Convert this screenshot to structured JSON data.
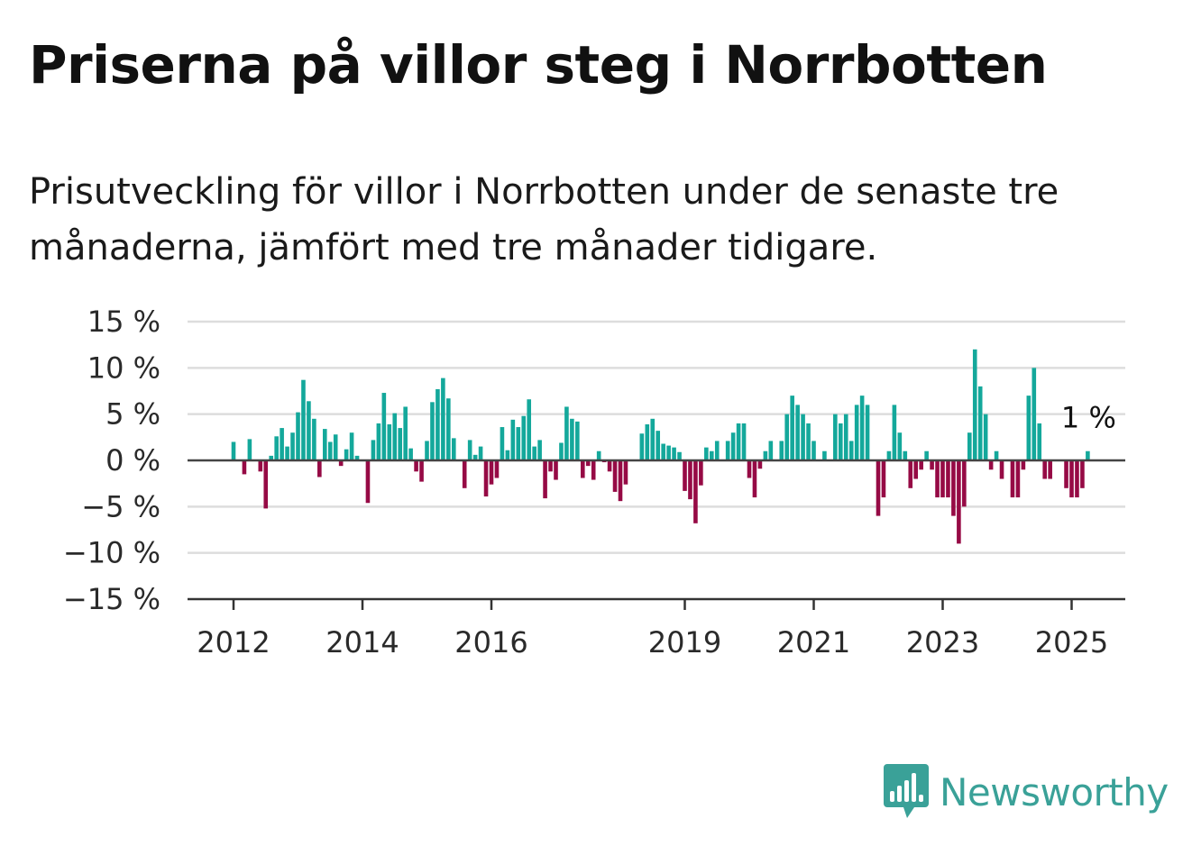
{
  "title": "Priserna på villor steg i Norrbotten",
  "subtitle": "Prisutveckling för villor i Norrbotten under de senaste tre månaderna, jämfört med tre månader tidigare.",
  "brand": {
    "name": "Newsworthy",
    "color": "#3aa198"
  },
  "colors": {
    "positive": "#14a89b",
    "negative": "#960a45",
    "zero_line": "#444444",
    "grid": "#dddddd"
  },
  "chart_data": {
    "type": "bar",
    "ylim": [
      -15,
      15
    ],
    "yticks": [
      15,
      10,
      5,
      0,
      -5,
      -10,
      -15
    ],
    "ytick_labels": [
      "15 %",
      "10 %",
      "5 %",
      "0 %",
      "−5 %",
      "−10 %",
      "−15 %"
    ],
    "xticks": [
      {
        "year": 2012,
        "label": "2012"
      },
      {
        "year": 2014,
        "label": "2014"
      },
      {
        "year": 2016,
        "label": "2016"
      },
      {
        "year": 2019,
        "label": "2019"
      },
      {
        "year": 2021,
        "label": "2021"
      },
      {
        "year": 2023,
        "label": "2023"
      },
      {
        "year": 2025,
        "label": "2025"
      }
    ],
    "start_date": "2012-01",
    "grid": true,
    "values": [
      2.0,
      0,
      -1.5,
      2.3,
      0,
      -1.2,
      -5.2,
      0.5,
      2.6,
      3.5,
      1.5,
      3.0,
      5.2,
      8.7,
      6.4,
      4.5,
      -1.8,
      3.4,
      2.0,
      2.8,
      -0.6,
      1.2,
      3.0,
      0.5,
      0,
      -4.6,
      2.2,
      4.0,
      7.3,
      3.9,
      5.1,
      3.5,
      5.8,
      1.3,
      -1.2,
      -2.3,
      2.1,
      6.3,
      7.7,
      8.9,
      6.7,
      2.4,
      0,
      -3.0,
      2.2,
      0.6,
      1.5,
      -3.9,
      -2.6,
      -1.9,
      3.6,
      1.1,
      4.4,
      3.6,
      4.8,
      6.6,
      1.5,
      2.2,
      -4.1,
      -1.2,
      -2.1,
      1.9,
      5.8,
      4.5,
      4.2,
      -1.9,
      -0.6,
      -2.1,
      1.0,
      -0.2,
      -1.2,
      -3.4,
      -4.4,
      -2.6,
      0,
      0,
      2.9,
      3.9,
      4.5,
      3.2,
      1.8,
      1.6,
      1.4,
      0.9,
      -3.3,
      -4.2,
      -6.8,
      -2.7,
      1.4,
      1.0,
      2.1,
      0,
      2.1,
      3.0,
      4.0,
      4.0,
      -1.9,
      -4.0,
      -0.9,
      1.0,
      2.1,
      0,
      2.1,
      5.0,
      7.0,
      6.0,
      5.0,
      4.0,
      2.1,
      0,
      1.0,
      0,
      5.0,
      4.0,
      5.0,
      2.1,
      6.0,
      7.0,
      6.0,
      0,
      -6.0,
      -4.0,
      1.0,
      6.0,
      3.0,
      1.0,
      -3.0,
      -2.0,
      -1.0,
      1.0,
      -1.0,
      -4.0,
      -4.0,
      -4.0,
      -6.0,
      -9.0,
      -5.0,
      3.0,
      12.0,
      8.0,
      5.0,
      -1.0,
      1.0,
      -2.0,
      0,
      -4.0,
      -4.0,
      -1.0,
      7.0,
      10.0,
      4.0,
      -2.0,
      -2.0,
      0,
      0,
      -3.0,
      -4.0,
      -4.0,
      -3.0,
      1.0
    ],
    "annotation": {
      "text": "1 %",
      "target": "last"
    }
  }
}
